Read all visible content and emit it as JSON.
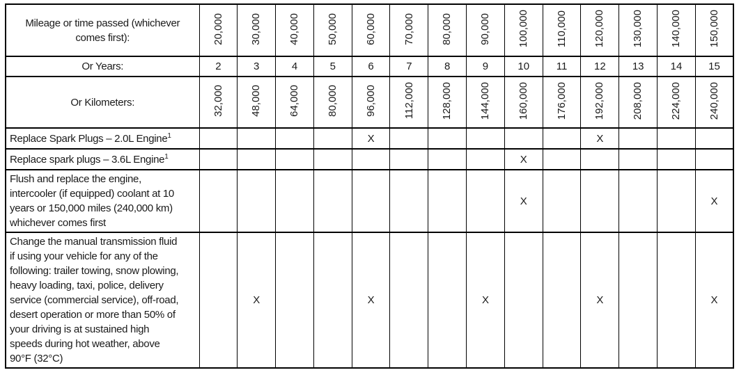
{
  "table": {
    "mark_symbol": "X",
    "header": {
      "mileage_label": "Mileage or time passed (whichever comes first):",
      "mileage_values": [
        "20,000",
        "30,000",
        "40,000",
        "50,000",
        "60,000",
        "70,000",
        "80,000",
        "90,000",
        "100,000",
        "110,000",
        "120,000",
        "130,000",
        "140,000",
        "150,000"
      ],
      "years_label": "Or Years:",
      "years_values": [
        "2",
        "3",
        "4",
        "5",
        "6",
        "7",
        "8",
        "9",
        "10",
        "11",
        "12",
        "13",
        "14",
        "15"
      ],
      "kilometers_label": "Or Kilometers:",
      "kilometers_values": [
        "32,000",
        "48,000",
        "64,000",
        "80,000",
        "96,000",
        "112,000",
        "128,000",
        "144,000",
        "160,000",
        "176,000",
        "192,000",
        "208,000",
        "224,000",
        "240,000"
      ]
    },
    "rows": [
      {
        "label": "Replace Spark Plugs – 2.0L Engine",
        "superscript": "1",
        "marks": [
          4,
          10
        ]
      },
      {
        "label": "Replace spark plugs – 3.6L Engine",
        "superscript": "1",
        "marks": [
          8
        ]
      },
      {
        "label": "Flush and replace the engine, intercooler (if equipped) coolant at 10 years or 150,000 miles (240,000 km) whichever comes first",
        "superscript": "",
        "marks": [
          8,
          13
        ]
      },
      {
        "label": "Change the manual transmission fluid if using your vehicle for any of the following: trailer towing, snow plowing, heavy loading, taxi, police, delivery service (commercial service), off-road, desert operation or more than 50% of your driving is at sustained high speeds during hot weather, above 90°F (32°C)",
        "superscript": "",
        "marks": [
          1,
          4,
          7,
          10,
          13
        ]
      }
    ],
    "colors": {
      "border": "#000000",
      "text": "#1a1a1a",
      "background": "#ffffff"
    }
  }
}
